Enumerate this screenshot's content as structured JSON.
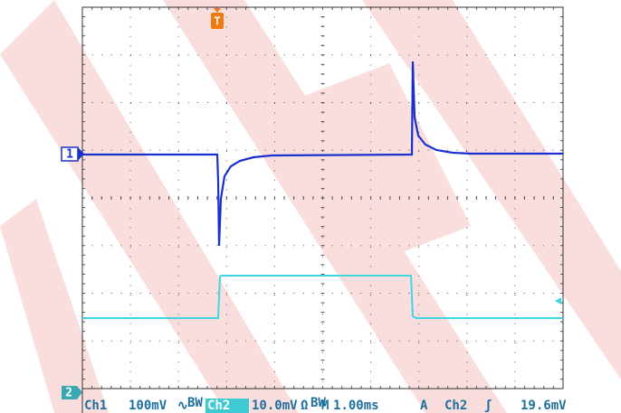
{
  "markers": {
    "ch1": "1",
    "ch2": "2",
    "trigger": "T"
  },
  "status": {
    "ch1_label": "Ch1",
    "ch1_scale": "100mV",
    "ch1_coupling": "∿",
    "ch1_bw": "BW",
    "ch2_label": "Ch2",
    "ch2_scale": "10.0mV",
    "ch2_coupling": "Ω",
    "ch2_bw": "BW",
    "time_prefix": "M",
    "timebase": "1.00ms",
    "trigger_mode": "A",
    "trigger_source": "Ch2",
    "trigger_slope": "ʃ",
    "trigger_level": "19.6mV"
  }
}
